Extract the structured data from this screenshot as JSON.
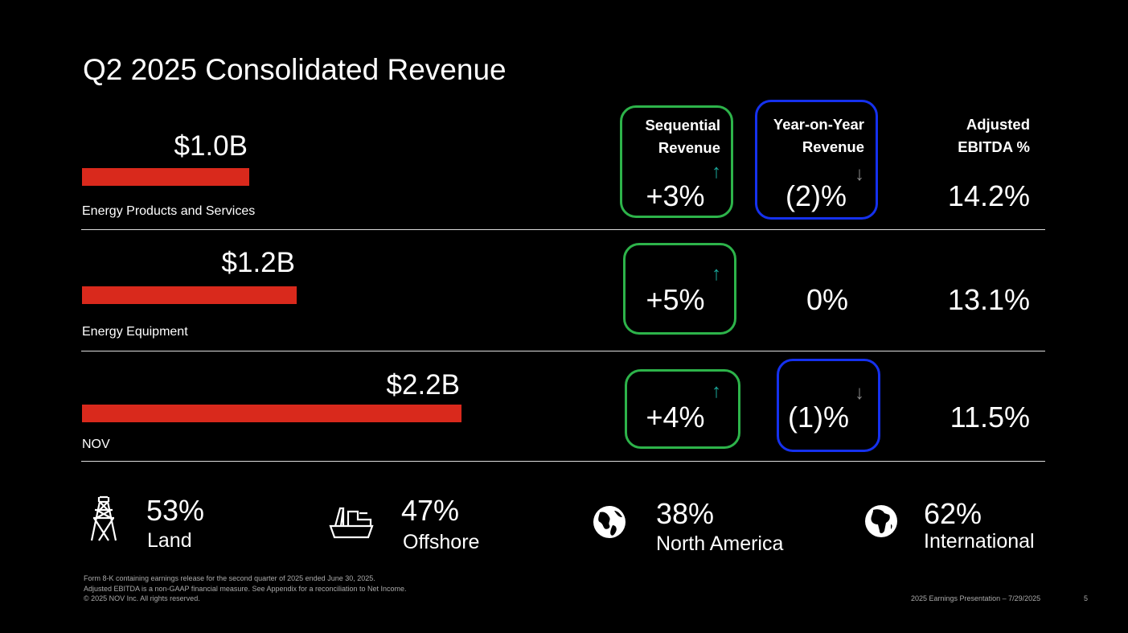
{
  "title": "Q2 2025 Consolidated Revenue",
  "headers": {
    "sequential": [
      "Sequential",
      "Revenue"
    ],
    "yoy": [
      "Year-on-Year",
      "Revenue"
    ],
    "ebitda": [
      "Adjusted",
      "EBITDA %"
    ]
  },
  "rows": [
    {
      "segment": "Energy Products and Services",
      "revenue": "$1.0B",
      "revenue_billions": 1.0,
      "sequential": "+3%",
      "sequential_trend": "up",
      "yoy": "(2)%",
      "yoy_trend": "down",
      "ebitda": "14.2%"
    },
    {
      "segment": "Energy Equipment",
      "revenue": "$1.2B",
      "revenue_billions": 1.2,
      "sequential": "+5%",
      "sequential_trend": "up",
      "yoy": "0%",
      "yoy_trend": "flat",
      "ebitda": "13.1%"
    },
    {
      "segment": "NOV",
      "revenue": "$2.2B",
      "revenue_billions": 2.2,
      "sequential": "+4%",
      "sequential_trend": "up",
      "yoy": "(1)%",
      "yoy_trend": "down",
      "ebitda": "11.5%"
    }
  ],
  "mix": [
    {
      "icon": "oil-rig-icon",
      "value": "53%",
      "label": "Land"
    },
    {
      "icon": "offshore-vessel-icon",
      "value": "47%",
      "label": "Offshore"
    },
    {
      "icon": "globe-americas-icon",
      "value": "38%",
      "label": "North America"
    },
    {
      "icon": "globe-africa-icon",
      "value": "62%",
      "label": "International"
    }
  ],
  "footer": {
    "lines": [
      "Form 8-K containing earnings release for the second quarter of 2025 ended June 30, 2025.",
      "Adjusted EBITDA is a non-GAAP financial measure. See Appendix for a reconciliation to Net Income.",
      "© 2025 NOV Inc. All rights reserved."
    ],
    "presentation": "2025 Earnings Presentation – 7/29/2025",
    "page": "5"
  },
  "colors": {
    "bar": "#d9291c",
    "green": "#2db34a",
    "blue": "#1531ee",
    "up_arrow": "#1aa79a",
    "down_arrow": "#8a8a8a"
  },
  "arrows": {
    "up": "↑",
    "down": "↓"
  }
}
